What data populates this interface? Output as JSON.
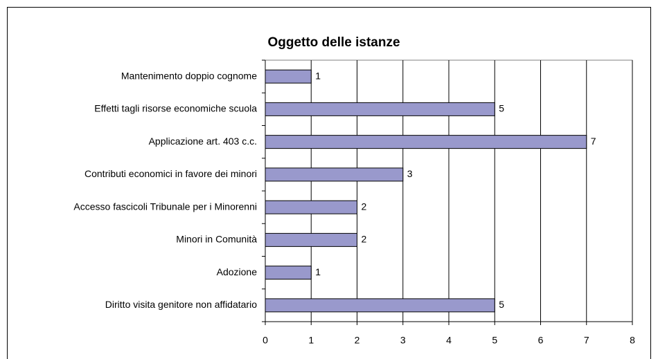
{
  "chart_data": {
    "type": "bar",
    "orientation": "horizontal",
    "title": "Oggetto delle istanze",
    "categories": [
      "Mantenimento doppio cognome",
      "Effetti tagli risorse economiche scuola",
      "Applicazione art. 403 c.c.",
      "Contributi economici in favore dei minori",
      "Accesso fascicoli Tribunale per i Minorenni",
      "Minori in Comunità",
      "Adozione",
      "Diritto visita genitore non affidatario"
    ],
    "values": [
      1,
      5,
      7,
      3,
      2,
      2,
      1,
      5
    ],
    "color": "#9999cc",
    "xlim": [
      0,
      8
    ],
    "xticks": [
      0,
      1,
      2,
      3,
      4,
      5,
      6,
      7,
      8
    ],
    "grid": true
  }
}
